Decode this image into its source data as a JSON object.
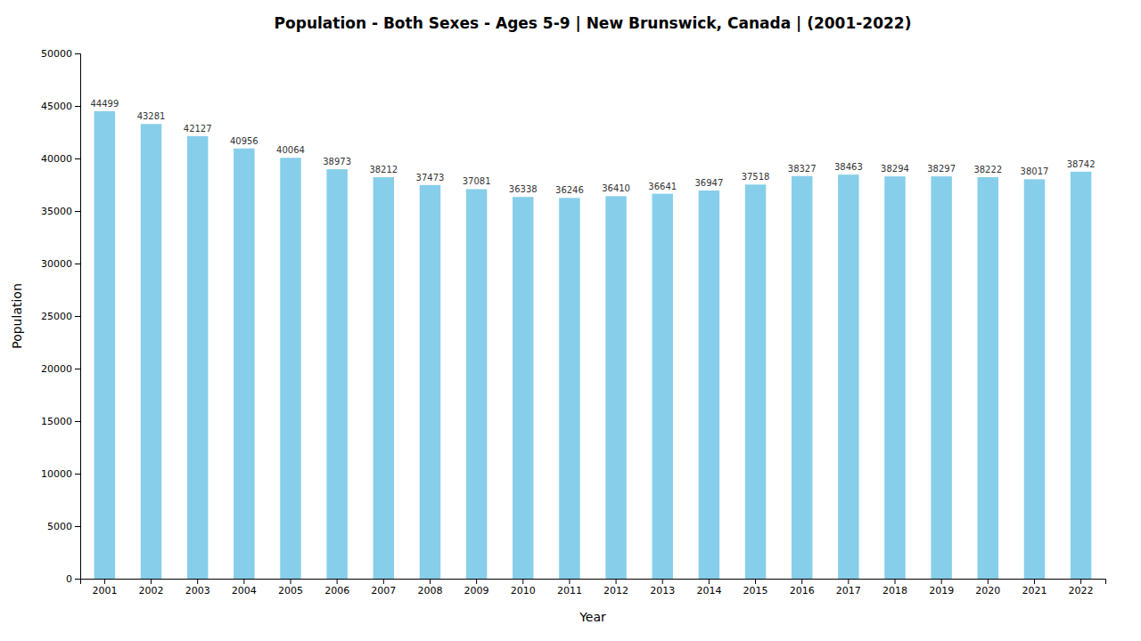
{
  "chart_data": {
    "type": "bar",
    "title": "Population - Both Sexes - Ages 5-9 | New Brunswick, Canada |  (2001-2022)",
    "x_label": "Year",
    "y_label": "Population",
    "categories": [
      "2001",
      "2002",
      "2003",
      "2004",
      "2005",
      "2006",
      "2007",
      "2008",
      "2009",
      "2010",
      "2011",
      "2012",
      "2013",
      "2014",
      "2015",
      "2016",
      "2017",
      "2018",
      "2019",
      "2020",
      "2021",
      "2022"
    ],
    "values": [
      44499,
      43281,
      42127,
      40956,
      40064,
      38973,
      38212,
      37473,
      37081,
      36338,
      36246,
      36410,
      36641,
      36947,
      37518,
      38327,
      38463,
      38294,
      38297,
      38222,
      38017,
      38742
    ],
    "color": "#87CEEB",
    "ylim": [
      0,
      50000
    ],
    "yticks": [
      0,
      5000,
      10000,
      15000,
      20000,
      25000,
      30000,
      35000,
      40000,
      45000,
      50000
    ],
    "grid": false,
    "data_labels": true
  }
}
